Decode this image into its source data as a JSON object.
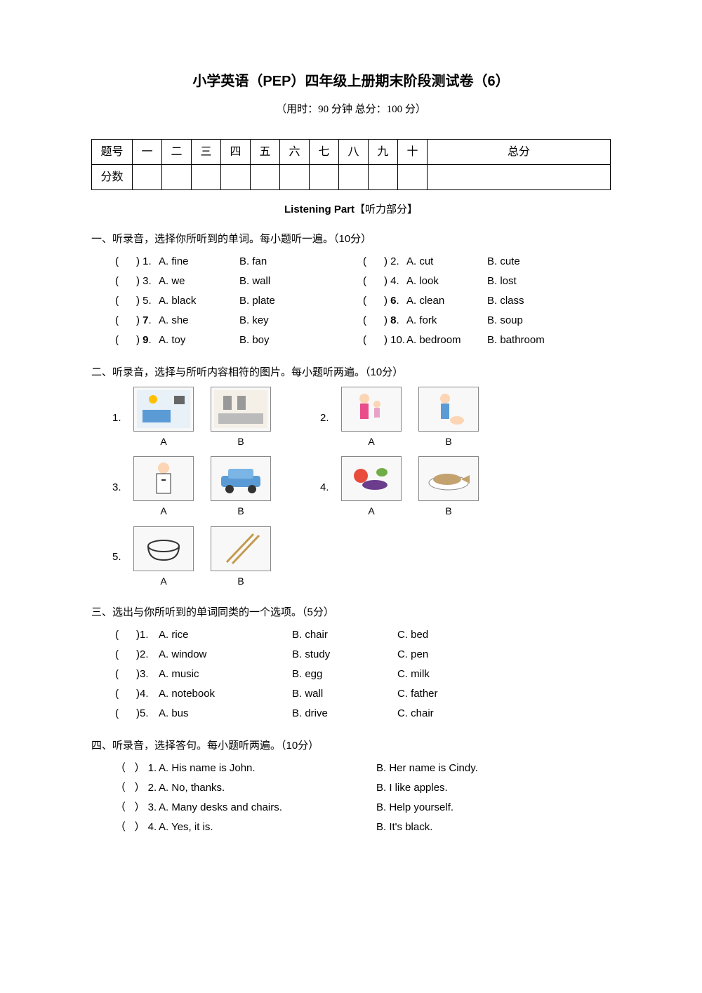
{
  "title": "小学英语（PEP）四年级上册期末阶段测试卷（6）",
  "subtitle": "（用时：90 分钟  总分：100 分）",
  "scoreTable": {
    "rowLabel1": "题号",
    "rowLabel2": "分数",
    "cols": [
      "一",
      "二",
      "三",
      "四",
      "五",
      "六",
      "七",
      "八",
      "九",
      "十"
    ],
    "total": "总分"
  },
  "listeningHeader": {
    "prefix": "Listening Part",
    "suffix": "【听力部分】"
  },
  "section1": {
    "heading": "一、听录音，选择你所听到的单词。每小题听一遍。（10分）",
    "items": [
      {
        "n": "1",
        "a": "A. fine",
        "b": "B. fan"
      },
      {
        "n": "2",
        "a": "A. cut",
        "b": "B. cute"
      },
      {
        "n": "3",
        "a": "A. we",
        "b": "B. wall"
      },
      {
        "n": "4",
        "a": "A. look",
        "b": "B. lost"
      },
      {
        "n": "5",
        "a": "A. black",
        "b": "B. plate"
      },
      {
        "n": "6",
        "a": "A. clean",
        "b": "B. class",
        "bold": true
      },
      {
        "n": "7",
        "a": "A. she",
        "b": "B. key",
        "bold": true
      },
      {
        "n": "8",
        "a": "A. fork",
        "b": "B. soup",
        "bold": true
      },
      {
        "n": "9",
        "a": "A. toy",
        "b": "B. boy",
        "bold": true
      },
      {
        "n": "10",
        "a": "A. bedroom",
        "b": "B. bathroom"
      }
    ]
  },
  "section2": {
    "heading": "二、听录音，选择与所听内容相符的图片。每小题听两遍。（10分）",
    "colors": {
      "border": "#888888",
      "bg": "#f8f8f8",
      "accent1": "#5b9bd5",
      "accent2": "#70ad47",
      "accent3": "#ed7d31",
      "accent4": "#ffc000",
      "skin": "#fcd5b4"
    }
  },
  "section3": {
    "heading": "三、选出与你所听到的单词同类的一个选项。（5分）",
    "items": [
      {
        "n": "1",
        "a": "A. rice",
        "b": "B. chair",
        "c": "C. bed"
      },
      {
        "n": "2",
        "a": "A. window",
        "b": "B. study",
        "c": "C. pen"
      },
      {
        "n": "3",
        "a": "A. music",
        "b": "B. egg",
        "c": "C. milk"
      },
      {
        "n": "4",
        "a": "A. notebook",
        "b": "B. wall",
        "c": "C. father"
      },
      {
        "n": "5",
        "a": "A. bus",
        "b": "B. drive",
        "c": "C. chair"
      }
    ]
  },
  "section4": {
    "heading": "四、听录音，选择答句。每小题听两遍。（10分）",
    "items": [
      {
        "n": "1",
        "a": "A. His name is John.",
        "b": "B. Her name is Cindy."
      },
      {
        "n": "2",
        "a": "A. No, thanks.",
        "b": "B. I like apples."
      },
      {
        "n": "3",
        "a": "A. Many desks and chairs.",
        "b": "B. Help yourself."
      },
      {
        "n": "4",
        "a": "A. Yes, it is.",
        "b": "B. It's black."
      }
    ]
  },
  "paren": {
    "open": "(",
    "close": ")"
  }
}
